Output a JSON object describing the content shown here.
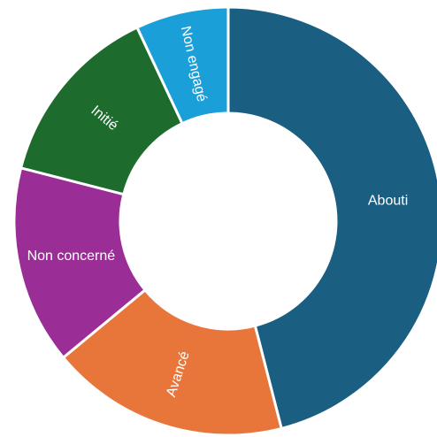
{
  "chart_data": {
    "type": "donut",
    "categories": [
      "Abouti",
      "Avancé",
      "Non concerné",
      "Initié",
      "Non engagé"
    ],
    "values": [
      46,
      18,
      15,
      14,
      7
    ],
    "colors": [
      "#1a5e82",
      "#e8763a",
      "#9b2d96",
      "#1e6b2e",
      "#1a9fd8"
    ]
  }
}
